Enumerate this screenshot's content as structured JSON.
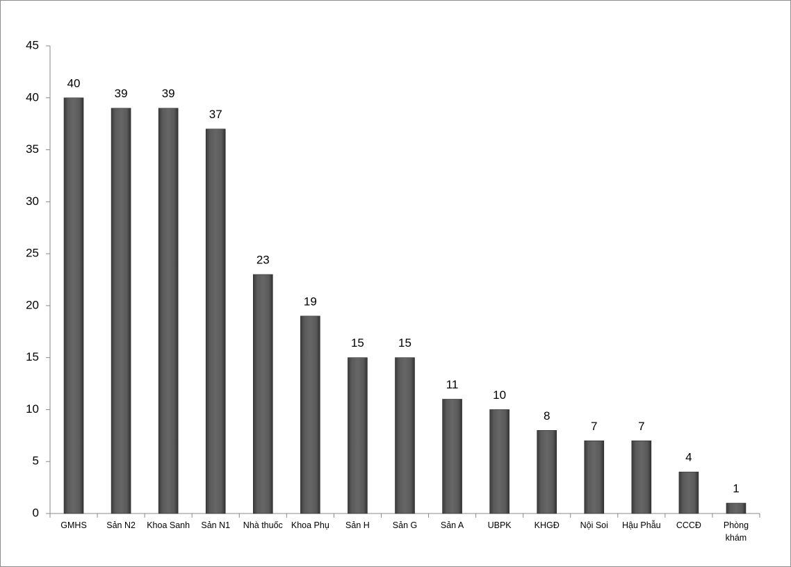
{
  "chart_data": {
    "type": "bar",
    "categories": [
      "GMHS",
      "Sản N2",
      "Khoa Sanh",
      "Sản N1",
      "Nhà thuốc",
      "Khoa Phụ",
      "Sản H",
      "Sản G",
      "Sản A",
      "UBPK",
      "KHGĐ",
      "Nội Soi",
      "Hậu Phẫu",
      "CCCĐ",
      "Phòng khám"
    ],
    "values": [
      40,
      39,
      39,
      37,
      23,
      19,
      15,
      15,
      11,
      10,
      8,
      7,
      7,
      4,
      1
    ],
    "color": "#555555",
    "ylim": [
      0,
      45
    ],
    "yticks": [
      0,
      5,
      10,
      15,
      20,
      25,
      30,
      35,
      40,
      45
    ],
    "grid": false
  }
}
